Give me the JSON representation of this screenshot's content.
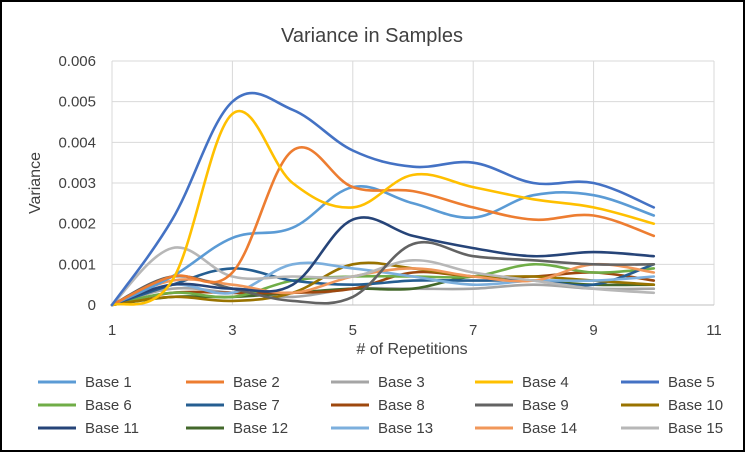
{
  "chart_data": {
    "type": "line",
    "title": "Variance in Samples",
    "xlabel": "# of Repetitions",
    "ylabel": "Variance",
    "xlim": [
      1,
      11
    ],
    "ylim": [
      0,
      0.006
    ],
    "x_ticks": [
      "1",
      "3",
      "5",
      "7",
      "9",
      "11"
    ],
    "y_ticks": [
      "0",
      "0.001",
      "0.002",
      "0.003",
      "0.004",
      "0.005",
      "0.006"
    ],
    "grid": true,
    "legend_position": "bottom",
    "x": [
      1,
      2,
      3,
      4,
      5,
      6,
      7,
      8,
      9,
      10
    ],
    "series": [
      {
        "name": "Base 1",
        "color": "#5b9bd5",
        "values": [
          0,
          0.0007,
          0.00165,
          0.0019,
          0.0029,
          0.0025,
          0.00215,
          0.0027,
          0.0027,
          0.0022
        ]
      },
      {
        "name": "Base 2",
        "color": "#ed7d31",
        "values": [
          0,
          0.0007,
          0.0008,
          0.0038,
          0.0029,
          0.0028,
          0.0024,
          0.0021,
          0.0022,
          0.0017
        ]
      },
      {
        "name": "Base 3",
        "color": "#a5a5a5",
        "values": [
          0,
          0.0004,
          0.0003,
          0.0002,
          0.0004,
          0.0004,
          0.0004,
          0.0005,
          0.0004,
          0.0004
        ]
      },
      {
        "name": "Base 4",
        "color": "#ffc000",
        "values": [
          0,
          0.0006,
          0.0047,
          0.003,
          0.0024,
          0.0032,
          0.0029,
          0.0026,
          0.0024,
          0.002
        ]
      },
      {
        "name": "Base 5",
        "color": "#4472c4",
        "values": [
          0,
          0.0021,
          0.005,
          0.0048,
          0.0038,
          0.0034,
          0.0035,
          0.003,
          0.003,
          0.0024
        ]
      },
      {
        "name": "Base 6",
        "color": "#70ad47",
        "values": [
          0,
          0.0003,
          0.0002,
          0.0006,
          0.0007,
          0.0007,
          0.0007,
          0.001,
          0.0008,
          0.0009
        ]
      },
      {
        "name": "Base 7",
        "color": "#255e91",
        "values": [
          0,
          0.0005,
          0.0009,
          0.0006,
          0.0005,
          0.0006,
          0.0006,
          0.0006,
          0.0005,
          0.001
        ]
      },
      {
        "name": "Base 8",
        "color": "#9e480e",
        "values": [
          0,
          0.0003,
          0.0003,
          0.0003,
          0.0004,
          0.0008,
          0.0007,
          0.0007,
          0.0008,
          0.0006
        ]
      },
      {
        "name": "Base 9",
        "color": "#636363",
        "values": [
          0,
          0.0007,
          0.0004,
          0.0001,
          0.0002,
          0.0015,
          0.0012,
          0.0011,
          0.001,
          0.001
        ]
      },
      {
        "name": "Base 10",
        "color": "#997300",
        "values": [
          0,
          0.0002,
          0.0001,
          0.0003,
          0.001,
          0.0009,
          0.0007,
          0.0007,
          0.0006,
          0.0005
        ]
      },
      {
        "name": "Base 11",
        "color": "#264478",
        "values": [
          0,
          0.0005,
          0.0004,
          0.0005,
          0.0021,
          0.0017,
          0.0014,
          0.0012,
          0.0013,
          0.0012
        ]
      },
      {
        "name": "Base 12",
        "color": "#43682b",
        "values": [
          0,
          0.0002,
          0.0002,
          0.0003,
          0.0004,
          0.0004,
          0.0007,
          0.0006,
          0.0005,
          0.0005
        ]
      },
      {
        "name": "Base 13",
        "color": "#7cafdd",
        "values": [
          0,
          0.0005,
          0.0003,
          0.001,
          0.0009,
          0.0007,
          0.0005,
          0.0006,
          0.0006,
          0.0007
        ]
      },
      {
        "name": "Base 14",
        "color": "#f1975a",
        "values": [
          0,
          0.0006,
          0.0005,
          0.0003,
          0.0007,
          0.0009,
          0.0007,
          0.0006,
          0.001,
          0.0008
        ]
      },
      {
        "name": "Base 15",
        "color": "#b7b7b7",
        "values": [
          0,
          0.0014,
          0.0007,
          0.0007,
          0.0007,
          0.0011,
          0.0008,
          0.0006,
          0.0004,
          0.0003
        ]
      }
    ]
  }
}
